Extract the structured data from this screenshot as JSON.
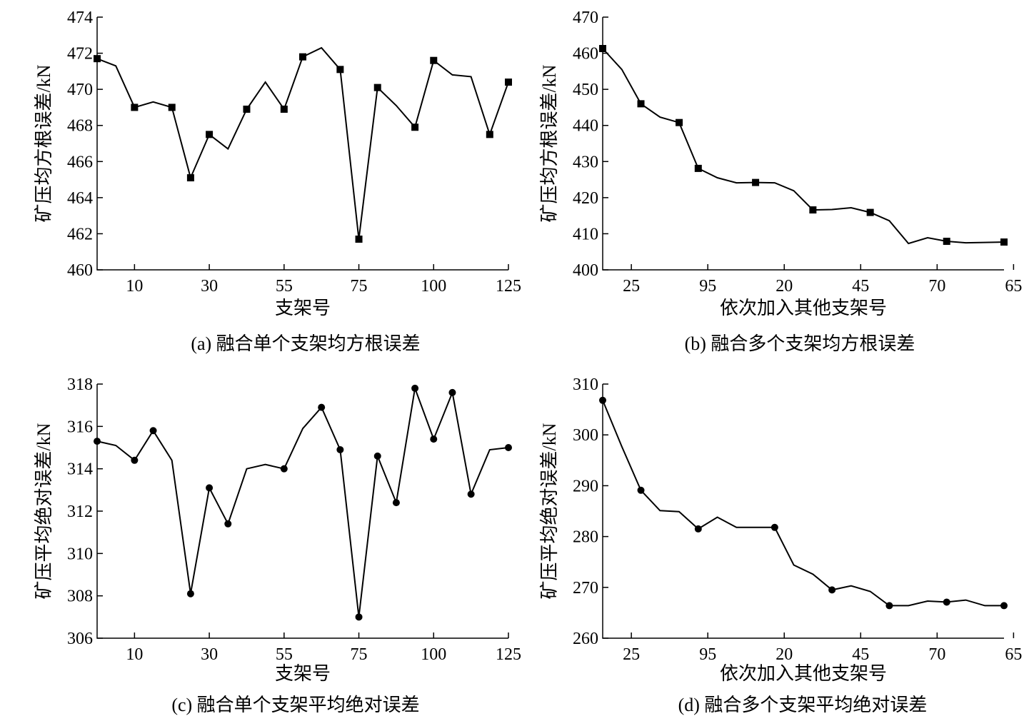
{
  "chart_data": [
    {
      "id": "a",
      "type": "line",
      "marker": "square",
      "caption": "(a)  融合单个支架均方根误差",
      "xlabel": "支架号",
      "ylabel": "矿压均方根误差/kN",
      "ylim": [
        460,
        474
      ],
      "yticks": [
        460,
        462,
        464,
        466,
        468,
        470,
        472,
        474
      ],
      "xticks": [
        "10",
        "30",
        "55",
        "75",
        "100",
        "125"
      ],
      "xtick_positions": [
        2,
        6,
        10,
        14,
        18,
        22
      ],
      "series": [
        {
          "values": [
            471.7,
            471.3,
            469.0,
            469.3,
            469.0,
            465.1,
            467.5,
            466.7,
            468.9,
            470.4,
            468.9,
            471.8,
            472.3,
            471.1,
            461.7,
            470.1,
            469.1,
            467.9,
            471.6,
            470.8,
            470.7,
            467.5,
            470.4
          ],
          "marker_indices": [
            0,
            2,
            4,
            5,
            6,
            8,
            10,
            11,
            13,
            14,
            15,
            17,
            18,
            21,
            22
          ]
        }
      ]
    },
    {
      "id": "b",
      "type": "line",
      "marker": "square",
      "caption": "(b)  融合多个支架均方根误差",
      "xlabel": "依次加入其他支架号",
      "ylabel": "矿压均方根误差/kN",
      "ylim": [
        400,
        470
      ],
      "yticks": [
        400,
        410,
        420,
        430,
        440,
        450,
        460,
        470
      ],
      "xticks": [
        "25",
        "95",
        "20",
        "45",
        "70",
        "65"
      ],
      "xtick_positions": [
        1.5,
        5.5,
        9.5,
        13.5,
        17.5,
        21.5
      ],
      "series": [
        {
          "values": [
            461.3,
            455.5,
            446.0,
            442.3,
            440.8,
            428.1,
            425.5,
            424.1,
            424.2,
            424.1,
            421.9,
            416.6,
            416.7,
            417.2,
            415.9,
            413.6,
            407.3,
            408.9,
            407.9,
            407.5,
            407.6,
            407.7
          ],
          "marker_indices": [
            0,
            2,
            4,
            5,
            8,
            11,
            14,
            18,
            21
          ]
        }
      ]
    },
    {
      "id": "c",
      "type": "line",
      "marker": "circle",
      "caption": "(c)  融合单个支架平均绝对误差",
      "xlabel": "支架号",
      "ylabel": "矿压平均绝对误差/kN",
      "ylim": [
        306,
        318
      ],
      "yticks": [
        306,
        308,
        310,
        312,
        314,
        316,
        318
      ],
      "xticks": [
        "10",
        "30",
        "55",
        "75",
        "100",
        "125"
      ],
      "xtick_positions": [
        2,
        6,
        10,
        14,
        18,
        22
      ],
      "series": [
        {
          "values": [
            315.3,
            315.1,
            314.4,
            315.8,
            314.4,
            308.1,
            313.1,
            311.4,
            314.0,
            314.2,
            314.0,
            315.9,
            316.9,
            314.9,
            307.0,
            314.6,
            312.4,
            317.8,
            315.4,
            317.6,
            312.8,
            314.9,
            315.0
          ],
          "marker_indices": [
            0,
            2,
            3,
            5,
            6,
            7,
            10,
            12,
            13,
            14,
            15,
            16,
            17,
            18,
            19,
            20,
            22
          ]
        }
      ]
    },
    {
      "id": "d",
      "type": "line",
      "marker": "circle",
      "caption": "(d)  融合多个支架平均绝对误差",
      "xlabel": "依次加入其他支架号",
      "ylabel": "矿压平均绝对误差/kN",
      "ylim": [
        260,
        310
      ],
      "yticks": [
        260,
        270,
        280,
        290,
        300,
        310
      ],
      "xticks": [
        "25",
        "95",
        "20",
        "45",
        "70",
        "65"
      ],
      "xtick_positions": [
        1.5,
        5.5,
        9.5,
        13.5,
        17.5,
        21.5
      ],
      "series": [
        {
          "values": [
            306.8,
            297.7,
            289.1,
            285.1,
            284.9,
            281.5,
            283.8,
            281.8,
            281.8,
            281.8,
            274.4,
            272.6,
            269.5,
            270.3,
            269.2,
            266.4,
            266.4,
            267.3,
            267.1,
            267.5,
            266.4,
            266.4
          ],
          "marker_indices": [
            0,
            2,
            5,
            9,
            12,
            15,
            18,
            21
          ]
        }
      ]
    }
  ]
}
